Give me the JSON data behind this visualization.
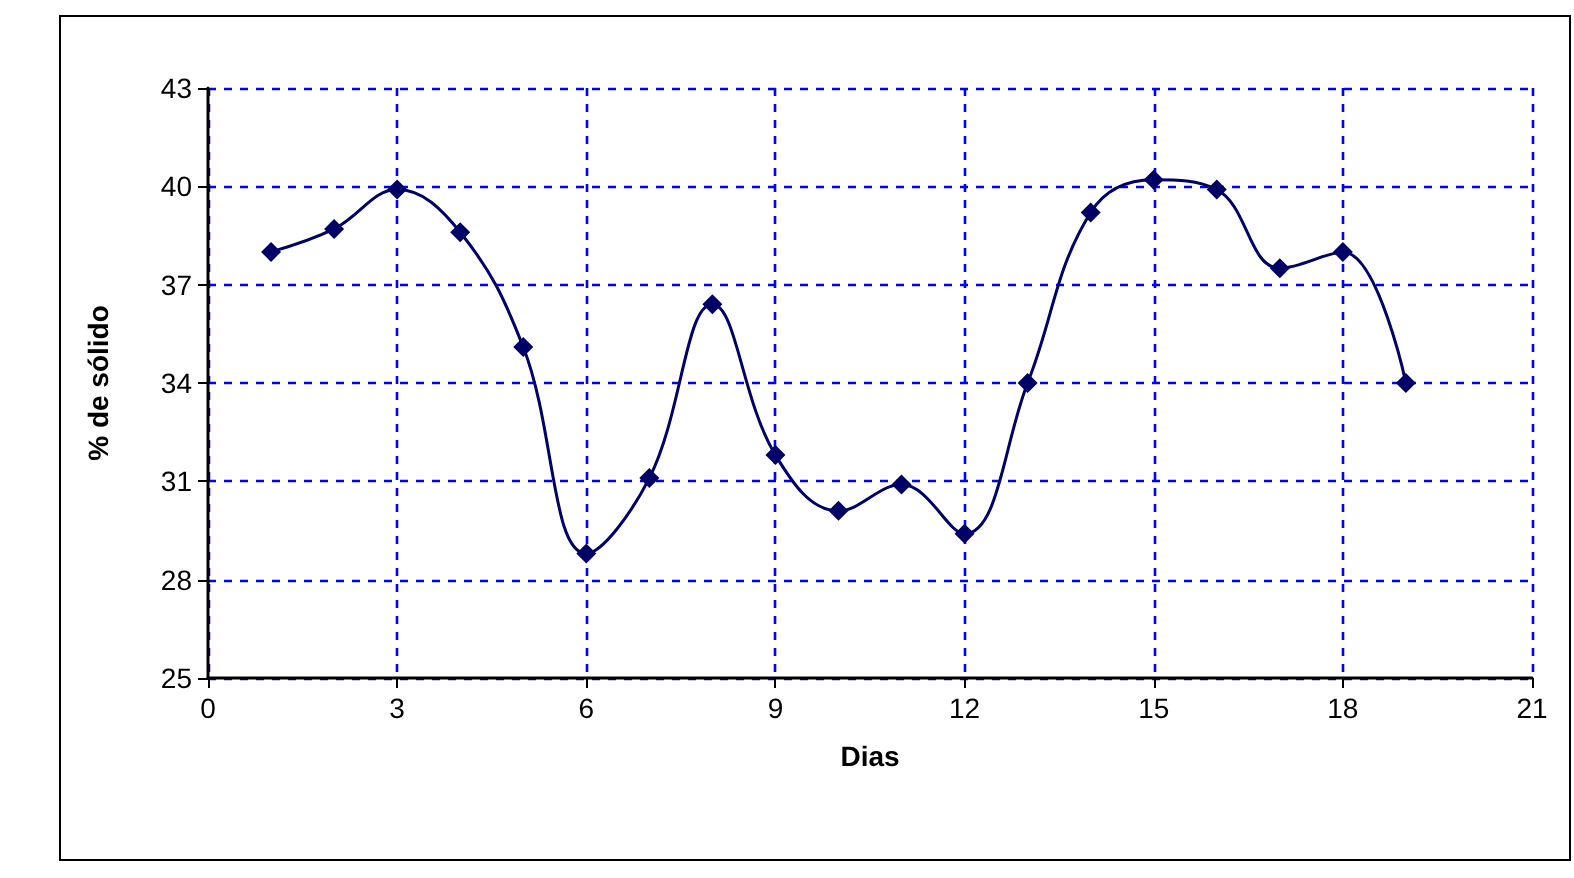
{
  "chart_data": {
    "type": "line",
    "xlabel": "Dias",
    "ylabel": "% de sólido",
    "x": [
      1,
      2,
      3,
      4,
      5,
      6,
      7,
      8,
      9,
      10,
      11,
      12,
      13,
      14,
      15,
      16,
      17,
      18,
      19
    ],
    "series": [
      {
        "color": "#000066",
        "values": [
          38.0,
          38.7,
          39.9,
          38.6,
          35.1,
          28.8,
          31.1,
          36.4,
          31.8,
          30.1,
          30.9,
          29.4,
          34.0,
          39.2,
          40.2,
          39.9,
          37.5,
          38.0,
          34.0
        ]
      }
    ],
    "xlim": [
      0,
      21
    ],
    "xticks": [
      0,
      3,
      6,
      9,
      12,
      15,
      18,
      21
    ],
    "ylim": [
      25,
      43
    ],
    "yticks": [
      25,
      28,
      31,
      34,
      37,
      40,
      43
    ],
    "grid": true,
    "marker": "diamond",
    "line_style": "solid"
  }
}
